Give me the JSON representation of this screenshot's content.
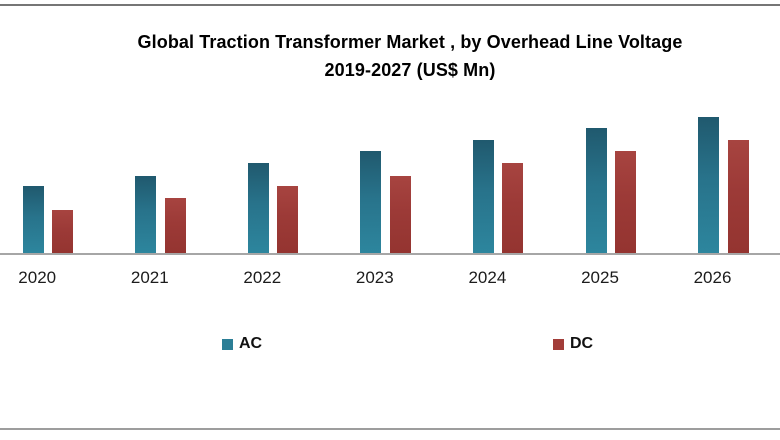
{
  "title": {
    "line1": "Global Traction Transformer Market , by Overhead Line Voltage",
    "line2": "2019-2027 (US$ Mn)"
  },
  "chart_data": {
    "type": "bar",
    "title": "Global Traction Transformer Market , by Overhead Line Voltage 2019-2027 (US$ Mn)",
    "categories": [
      "2020",
      "2021",
      "2022",
      "2023",
      "2024",
      "2025",
      "2026"
    ],
    "series": [
      {
        "name": "AC",
        "color": "#2b7e96",
        "values": [
          68,
          78,
          91,
          103,
          114,
          126,
          137
        ]
      },
      {
        "name": "DC",
        "color": "#9e3b38",
        "values": [
          44,
          56,
          68,
          78,
          91,
          103,
          114
        ]
      }
    ],
    "xlabel": "",
    "ylabel": "",
    "ylim": [
      0,
      154
    ],
    "y_axis_visible": false,
    "gridlines": false,
    "value_note": "no y-axis labels shown; values are relative bar heights",
    "legend_position": "bottom",
    "legend": [
      "AC",
      "DC"
    ]
  }
}
